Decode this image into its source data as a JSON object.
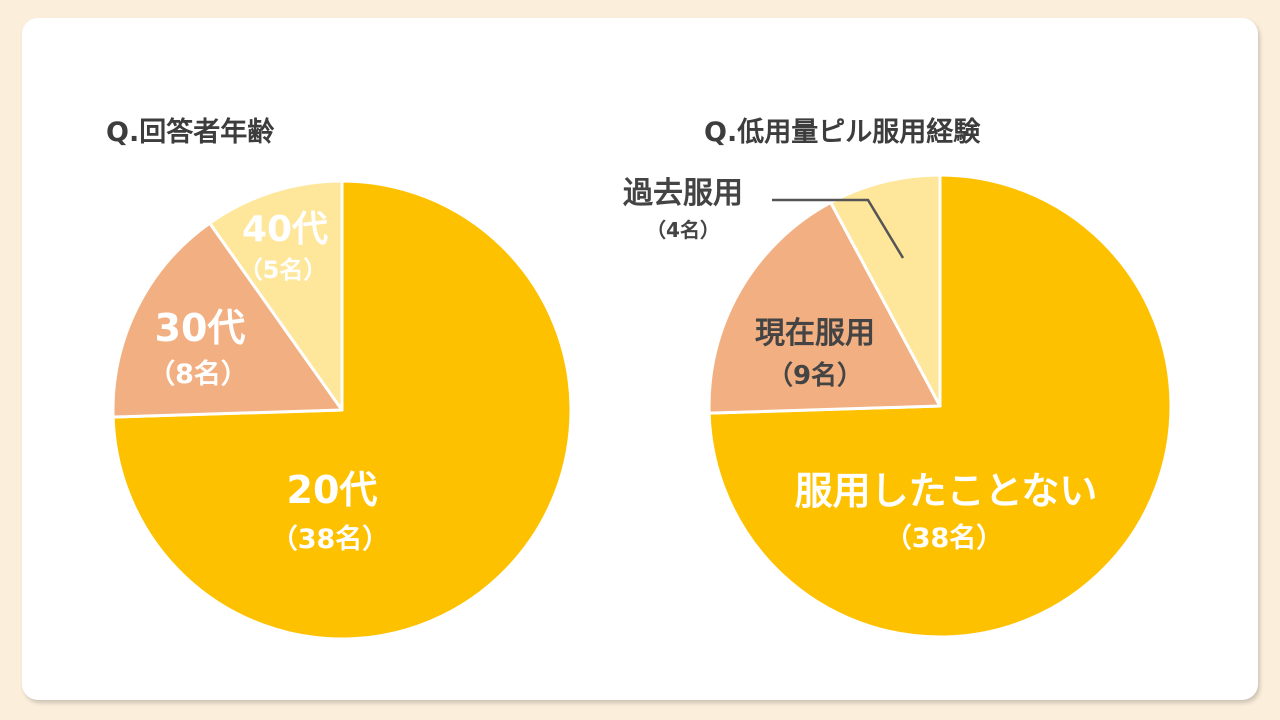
{
  "colors": {
    "background": "#fbeedb",
    "card": "#ffffff",
    "slice_main": "#fec100",
    "slice_second": "#f2b082",
    "slice_third": "#fee69b",
    "label_white": "#ffffff",
    "label_dark": "#444444",
    "leader_line": "#555555"
  },
  "chart_data": [
    {
      "type": "pie",
      "title": "Q.回答者年齢",
      "slices": [
        {
          "label": "20代",
          "count_label": "（38名）",
          "value": 38
        },
        {
          "label": "30代",
          "count_label": "（8名）",
          "value": 8
        },
        {
          "label": "40代",
          "count_label": "（5名）",
          "value": 5
        }
      ]
    },
    {
      "type": "pie",
      "title": "Q.低用量ピル服用経験",
      "slices": [
        {
          "label": "服用したことない",
          "count_label": "（38名）",
          "value": 38
        },
        {
          "label": "現在服用",
          "count_label": "（9名）",
          "value": 9
        },
        {
          "label": "過去服用",
          "count_label": "（4名）",
          "value": 4
        }
      ]
    }
  ]
}
